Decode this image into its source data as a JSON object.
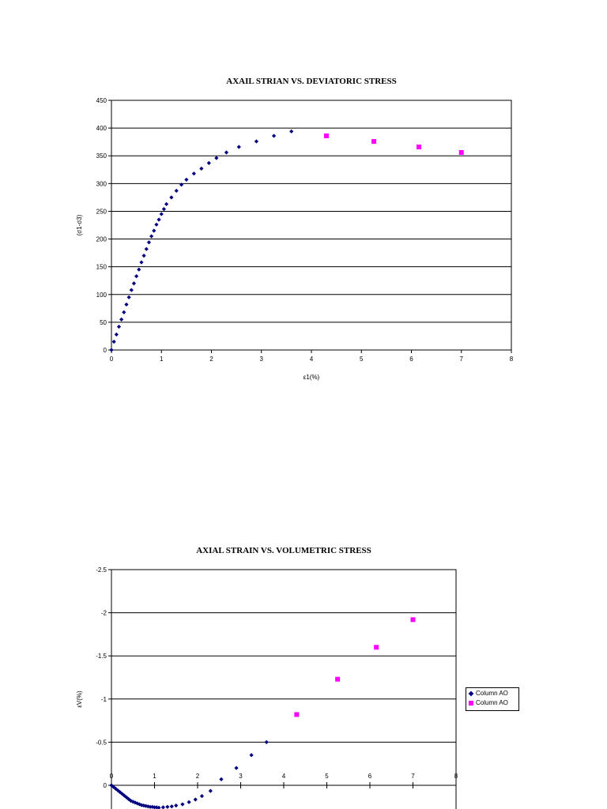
{
  "chart_data": [
    {
      "type": "scatter",
      "title": "AXAIL STRIAN VS. DEVIATORIC STRESS",
      "xlabel": "ε1(%)",
      "ylabel": "(σ1-σ3)",
      "xlim": [
        0,
        8
      ],
      "ylim": [
        0,
        450
      ],
      "x_ticks": [
        "0",
        "1",
        "2",
        "3",
        "4",
        "5",
        "6",
        "7",
        "8"
      ],
      "y_ticks": [
        "0",
        "50",
        "100",
        "150",
        "200",
        "250",
        "300",
        "350",
        "400",
        "450"
      ],
      "grid": "horizontal",
      "legend": false,
      "series": [
        {
          "color": "#000080",
          "marker": "diamond",
          "points": [
            [
              0,
              0
            ],
            [
              0.05,
              15
            ],
            [
              0.1,
              28
            ],
            [
              0.15,
              42
            ],
            [
              0.2,
              55
            ],
            [
              0.25,
              68
            ],
            [
              0.3,
              82
            ],
            [
              0.35,
              95
            ],
            [
              0.4,
              108
            ],
            [
              0.45,
              120
            ],
            [
              0.5,
              133
            ],
            [
              0.55,
              145
            ],
            [
              0.6,
              158
            ],
            [
              0.65,
              170
            ],
            [
              0.7,
              182
            ],
            [
              0.75,
              194
            ],
            [
              0.8,
              205
            ],
            [
              0.85,
              215
            ],
            [
              0.9,
              226
            ],
            [
              0.95,
              235
            ],
            [
              1.0,
              245
            ],
            [
              1.05,
              254
            ],
            [
              1.1,
              263
            ],
            [
              1.2,
              275
            ],
            [
              1.3,
              287
            ],
            [
              1.4,
              298
            ],
            [
              1.5,
              307
            ],
            [
              1.65,
              318
            ],
            [
              1.8,
              327
            ],
            [
              1.95,
              337
            ],
            [
              2.1,
              346
            ],
            [
              2.3,
              356
            ],
            [
              2.55,
              366
            ],
            [
              2.9,
              376
            ],
            [
              3.25,
              386
            ],
            [
              3.6,
              394
            ]
          ]
        },
        {
          "color": "#ff00ff",
          "marker": "square",
          "points": [
            [
              4.3,
              386
            ],
            [
              5.25,
              376
            ],
            [
              6.15,
              366
            ],
            [
              7.0,
              356
            ]
          ]
        }
      ]
    },
    {
      "type": "scatter",
      "title": "AXIAL STRAIN VS. VOLUMETRIC STRESS",
      "xlabel": "",
      "ylabel": "εV(%)",
      "xlim": [
        0,
        8
      ],
      "ylim": [
        -2.5,
        0.3
      ],
      "y_reversed": true,
      "x_ticks": [
        "0",
        "1",
        "2",
        "3",
        "4",
        "5",
        "6",
        "7",
        "8"
      ],
      "y_ticks": [
        "-2.5",
        "-2",
        "-1.5",
        "-1",
        "-0.5",
        "0"
      ],
      "grid": "horizontal",
      "legend": "right",
      "series": [
        {
          "name": "Column AO",
          "color": "#000080",
          "marker": "diamond",
          "points": [
            [
              0,
              0
            ],
            [
              0.05,
              0.02
            ],
            [
              0.1,
              0.04
            ],
            [
              0.15,
              0.06
            ],
            [
              0.2,
              0.08
            ],
            [
              0.25,
              0.1
            ],
            [
              0.3,
              0.12
            ],
            [
              0.35,
              0.14
            ],
            [
              0.4,
              0.16
            ],
            [
              0.45,
              0.18
            ],
            [
              0.5,
              0.19
            ],
            [
              0.55,
              0.2
            ],
            [
              0.6,
              0.21
            ],
            [
              0.65,
              0.22
            ],
            [
              0.7,
              0.23
            ],
            [
              0.75,
              0.235
            ],
            [
              0.8,
              0.24
            ],
            [
              0.85,
              0.245
            ],
            [
              0.9,
              0.25
            ],
            [
              0.95,
              0.25
            ],
            [
              1.0,
              0.255
            ],
            [
              1.05,
              0.255
            ],
            [
              1.1,
              0.26
            ],
            [
              1.2,
              0.255
            ],
            [
              1.3,
              0.25
            ],
            [
              1.4,
              0.245
            ],
            [
              1.5,
              0.235
            ],
            [
              1.65,
              0.22
            ],
            [
              1.8,
              0.195
            ],
            [
              1.95,
              0.165
            ],
            [
              2.1,
              0.125
            ],
            [
              2.3,
              0.065
            ],
            [
              2.55,
              -0.07
            ],
            [
              2.9,
              -0.2
            ],
            [
              3.25,
              -0.35
            ],
            [
              3.6,
              -0.5
            ]
          ]
        },
        {
          "name": "Column AO",
          "color": "#ff00ff",
          "marker": "square",
          "points": [
            [
              4.3,
              -0.82
            ],
            [
              5.25,
              -1.23
            ],
            [
              6.15,
              -1.6
            ],
            [
              7.0,
              -1.92
            ]
          ]
        }
      ]
    }
  ]
}
